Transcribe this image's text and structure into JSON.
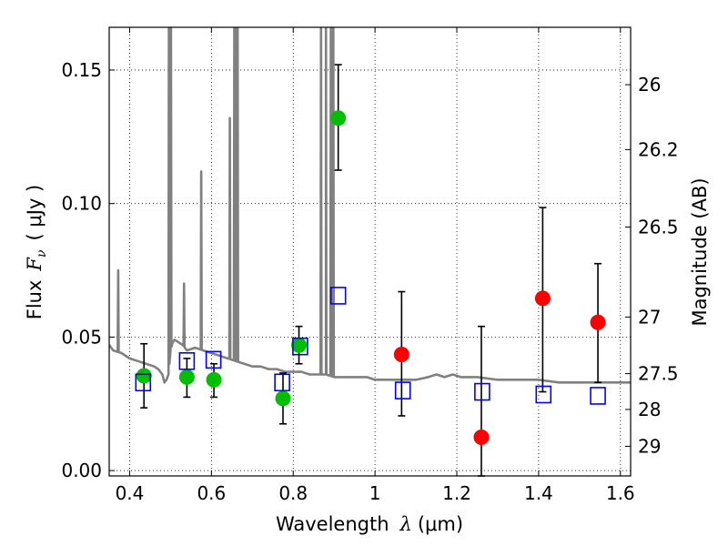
{
  "chart_data": {
    "type": "scatter",
    "xlabel": "Wavelength  λ (μm)",
    "xlabel_main": "Wavelength",
    "xlabel_var": "λ",
    "xlabel_unit": "(μm)",
    "ylabel": "Flux  Fν  ( μJy )",
    "ylabel_main": "Flux",
    "ylabel_var": "F",
    "ylabel_sub": "ν",
    "ylabel_unit": "( μJy )",
    "y2label": "Magnitude (AB)",
    "xlim": [
      0.35,
      1.625
    ],
    "ylim": [
      -0.002,
      0.166
    ],
    "grid": true,
    "x_ticks": [
      0.4,
      0.6,
      0.8,
      1.0,
      1.2,
      1.4,
      1.6
    ],
    "x_tick_labels": [
      "0.4",
      "0.6",
      "0.8",
      "1",
      "1.2",
      "1.4",
      "1.6"
    ],
    "y_ticks": [
      0.0,
      0.05,
      0.1,
      0.15
    ],
    "y_tick_labels": [
      "0.00",
      "0.05",
      "0.10",
      "0.15"
    ],
    "y2_ticks": [
      {
        "label": "26",
        "flux": 0.1445
      },
      {
        "label": "26.2",
        "flux": 0.1202
      },
      {
        "label": "26.5",
        "flux": 0.0912
      },
      {
        "label": "27",
        "flux": 0.0575
      },
      {
        "label": "27.5",
        "flux": 0.0363
      },
      {
        "label": "28",
        "flux": 0.0229
      },
      {
        "label": "29",
        "flux": 0.0091
      }
    ],
    "series": [
      {
        "name": "template-spectrum",
        "kind": "line",
        "color": "#808080",
        "baseline": [
          [
            0.35,
            0.047
          ],
          [
            0.36,
            0.045
          ],
          [
            0.38,
            0.044
          ],
          [
            0.4,
            0.042
          ],
          [
            0.42,
            0.041
          ],
          [
            0.44,
            0.04
          ],
          [
            0.46,
            0.039
          ],
          [
            0.47,
            0.038
          ],
          [
            0.48,
            0.036
          ],
          [
            0.485,
            0.033
          ],
          [
            0.49,
            0.034
          ],
          [
            0.495,
            0.036
          ],
          [
            0.5,
            0.045
          ],
          [
            0.505,
            0.048
          ],
          [
            0.51,
            0.049
          ],
          [
            0.52,
            0.048
          ],
          [
            0.53,
            0.047
          ],
          [
            0.54,
            0.045
          ],
          [
            0.56,
            0.046
          ],
          [
            0.58,
            0.045
          ],
          [
            0.6,
            0.044
          ],
          [
            0.62,
            0.043
          ],
          [
            0.64,
            0.042
          ],
          [
            0.66,
            0.041
          ],
          [
            0.68,
            0.04
          ],
          [
            0.7,
            0.039
          ],
          [
            0.72,
            0.039
          ],
          [
            0.74,
            0.038
          ],
          [
            0.76,
            0.038
          ],
          [
            0.78,
            0.037
          ],
          [
            0.8,
            0.037
          ],
          [
            0.82,
            0.037
          ],
          [
            0.84,
            0.036
          ],
          [
            0.86,
            0.036
          ],
          [
            0.88,
            0.036
          ],
          [
            0.9,
            0.035
          ],
          [
            0.92,
            0.035
          ],
          [
            0.94,
            0.035
          ],
          [
            0.96,
            0.035
          ],
          [
            0.98,
            0.035
          ],
          [
            1.0,
            0.034
          ],
          [
            1.02,
            0.034
          ],
          [
            1.05,
            0.034
          ],
          [
            1.08,
            0.034
          ],
          [
            1.1,
            0.034
          ],
          [
            1.13,
            0.035
          ],
          [
            1.15,
            0.036
          ],
          [
            1.17,
            0.035
          ],
          [
            1.19,
            0.036
          ],
          [
            1.21,
            0.035
          ],
          [
            1.25,
            0.035
          ],
          [
            1.3,
            0.034
          ],
          [
            1.35,
            0.034
          ],
          [
            1.4,
            0.034
          ],
          [
            1.45,
            0.033
          ],
          [
            1.5,
            0.033
          ],
          [
            1.55,
            0.033
          ],
          [
            1.6,
            0.033
          ],
          [
            1.625,
            0.033
          ]
        ],
        "emission_lines": [
          [
            0.372,
            0.075
          ],
          [
            0.496,
            0.17
          ],
          [
            0.501,
            0.17
          ],
          [
            0.533,
            0.07
          ],
          [
            0.575,
            0.112
          ],
          [
            0.645,
            0.132
          ],
          [
            0.656,
            0.17
          ],
          [
            0.659,
            0.17
          ],
          [
            0.664,
            0.17
          ],
          [
            0.868,
            0.17
          ],
          [
            0.88,
            0.17
          ],
          [
            0.892,
            0.17
          ],
          [
            0.898,
            0.17
          ]
        ]
      },
      {
        "name": "green-photometry",
        "kind": "points",
        "marker": "circle",
        "color": "#00bf00",
        "x": [
          0.435,
          0.54,
          0.606,
          0.775,
          0.814,
          0.91
        ],
        "y": [
          0.0355,
          0.035,
          0.034,
          0.027,
          0.047,
          0.132
        ],
        "yerr_low": [
          0.0235,
          0.0275,
          0.0275,
          0.0175,
          0.04,
          0.1125
        ],
        "yerr_high": [
          0.0475,
          0.042,
          0.04,
          0.0365,
          0.054,
          0.152
        ]
      },
      {
        "name": "red-photometry",
        "kind": "points",
        "marker": "circle",
        "color": "#ff0000",
        "x": [
          1.065,
          1.26,
          1.41,
          1.545
        ],
        "y": [
          0.0435,
          0.0125,
          0.0645,
          0.0555
        ],
        "yerr_low": [
          0.0205,
          -0.002,
          0.0295,
          0.033
        ],
        "yerr_high": [
          0.067,
          0.054,
          0.0985,
          0.0775
        ]
      },
      {
        "name": "model-photometry",
        "kind": "points",
        "marker": "open-square",
        "color": "#0000ff",
        "x": [
          0.433,
          0.54,
          0.605,
          0.773,
          0.817,
          0.91,
          1.068,
          1.262,
          1.412,
          1.545
        ],
        "y": [
          0.033,
          0.041,
          0.0415,
          0.033,
          0.0465,
          0.0655,
          0.03,
          0.0295,
          0.0285,
          0.028
        ]
      }
    ]
  }
}
